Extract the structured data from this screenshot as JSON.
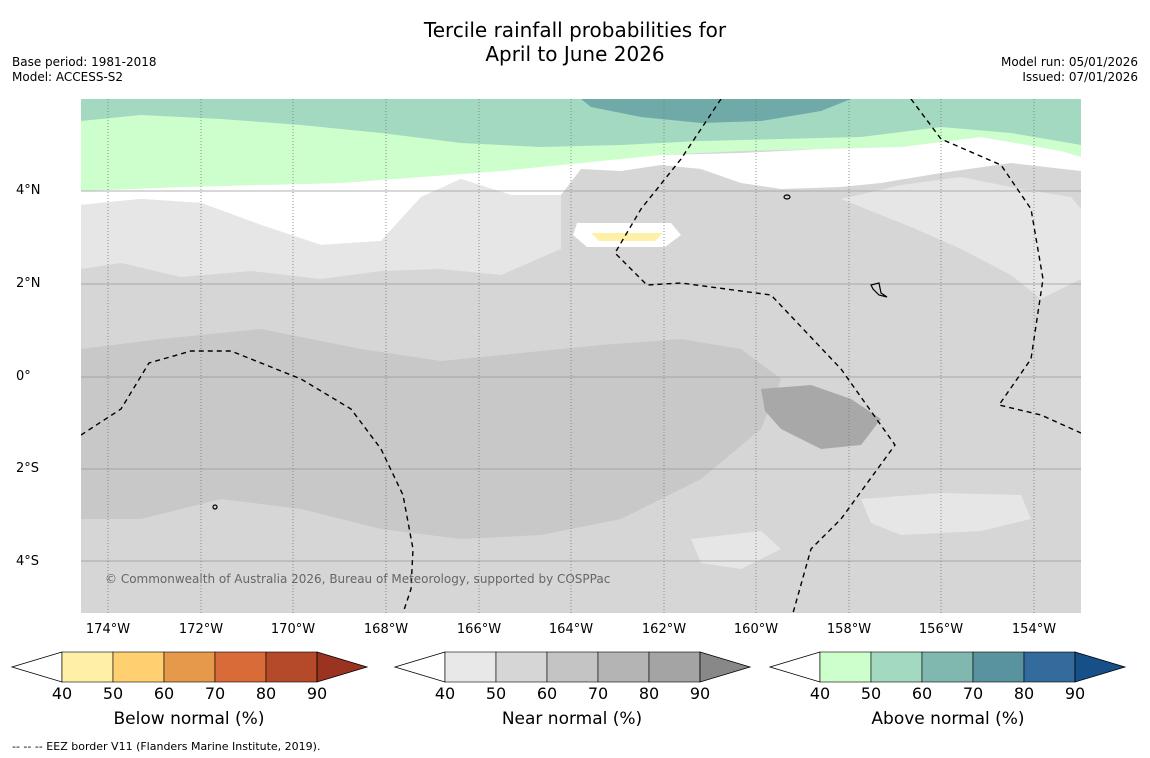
{
  "title_line1": "Tercile rainfall probabilities for",
  "title_line2": "April to June 2026",
  "meta_left": {
    "base_period": "Base period: 1981-2018",
    "model": "Model: ACCESS-S2"
  },
  "meta_right": {
    "model_run": "Model run: 05/01/2026",
    "issued": "Issued: 07/01/2026"
  },
  "map": {
    "lat_labels": [
      "4°N",
      "2°N",
      "0°",
      "2°S",
      "4°S"
    ],
    "lon_labels": [
      "174°W",
      "172°W",
      "170°W",
      "168°W",
      "166°W",
      "164°W",
      "162°W",
      "160°W",
      "158°W",
      "156°W",
      "154°W"
    ],
    "copyright": "© Commonwealth of Australia 2026, Bureau of Meteorology, supported by COSPPac"
  },
  "legends": [
    {
      "title": "Below normal (%)",
      "ticks": [
        "40",
        "50",
        "60",
        "70",
        "80",
        "90"
      ],
      "colors": [
        "#fff0a8",
        "#ffd070",
        "#e6994a",
        "#d86b38",
        "#b54a2a",
        "#9a3421"
      ]
    },
    {
      "title": "Near normal (%)",
      "ticks": [
        "40",
        "50",
        "60",
        "70",
        "80",
        "90"
      ],
      "colors": [
        "#e8e8e8",
        "#d6d6d6",
        "#c4c4c4",
        "#b4b4b4",
        "#a4a4a4",
        "#888888"
      ]
    },
    {
      "title": "Above normal (%)",
      "ticks": [
        "40",
        "50",
        "60",
        "70",
        "80",
        "90"
      ],
      "colors": [
        "#ccffcc",
        "#a3d9c0",
        "#80b8b0",
        "#5a93a0",
        "#336b9c",
        "#174f88"
      ]
    }
  ],
  "footer": "--  --  -- EEZ border V11 (Flanders Marine Institute, 2019)."
}
